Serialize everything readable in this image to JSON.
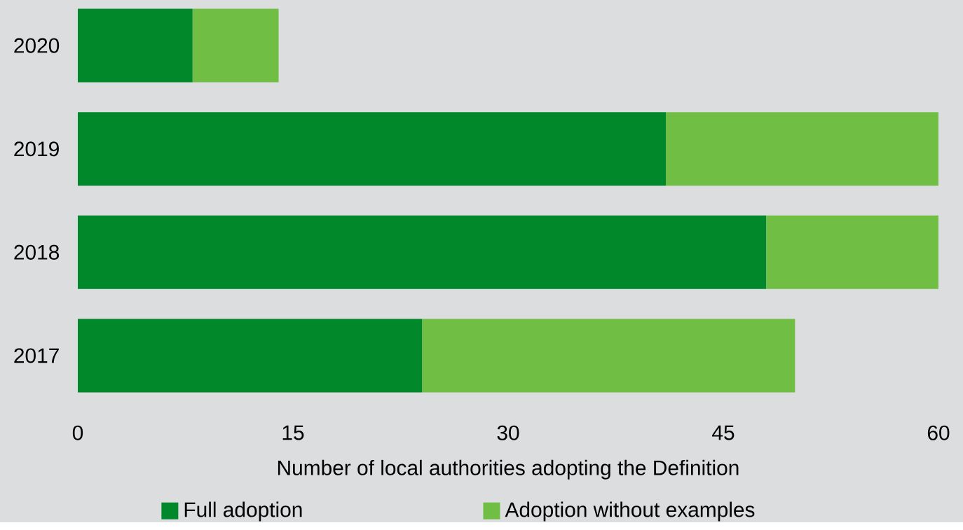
{
  "chart_data": {
    "type": "bar",
    "orientation": "horizontal",
    "stacked": true,
    "xlabel": "Number of local authorities adopting the Definition",
    "categories": [
      "2020",
      "2019",
      "2018",
      "2017"
    ],
    "series": [
      {
        "name": "Full adoption",
        "color": "#00882b",
        "values": [
          8,
          41,
          48,
          24
        ]
      },
      {
        "name": "Adoption without examples",
        "color": "#70bf44",
        "values": [
          6,
          19,
          12,
          26
        ]
      }
    ],
    "xlim": [
      0,
      60
    ],
    "xticks": [
      0,
      15,
      30,
      45,
      60
    ],
    "legend": "bottom",
    "grid": false
  }
}
